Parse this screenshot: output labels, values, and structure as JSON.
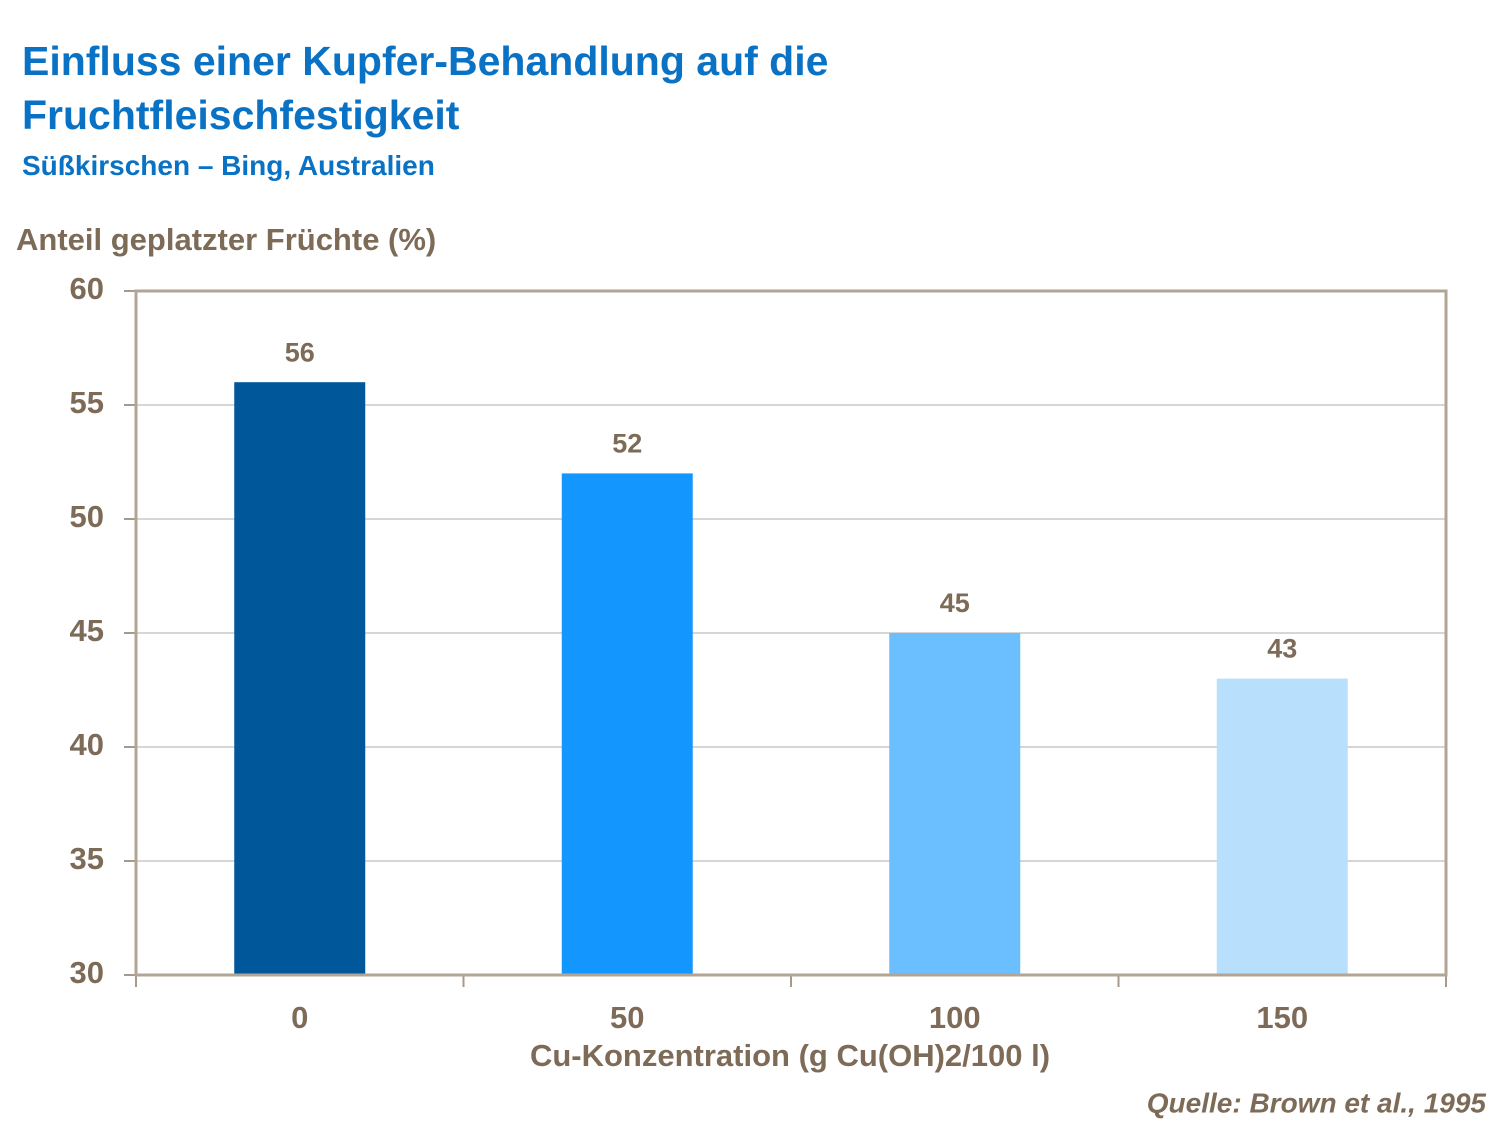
{
  "chart_data": {
    "type": "bar",
    "title": "Einfluss einer Kupfer-Behandlung auf die Fruchtfleischfestigkeit",
    "subtitle": "Süßkirschen – Bing, Australien",
    "y_label": "Anteil geplatzter Früchte (%)",
    "x_label": "Cu-Konzentration (g Cu(OH)2/100 l)",
    "source": "Quelle: Brown et al., 1995",
    "categories": [
      "0",
      "50",
      "100",
      "150"
    ],
    "values": [
      56,
      52,
      45,
      43
    ],
    "colors": [
      "#00579a",
      "#1496ff",
      "#6bbfff",
      "#b8e0fc"
    ],
    "ylim": [
      30,
      60
    ],
    "yticks": [
      30,
      35,
      40,
      45,
      50,
      55,
      60
    ],
    "grid": true
  }
}
